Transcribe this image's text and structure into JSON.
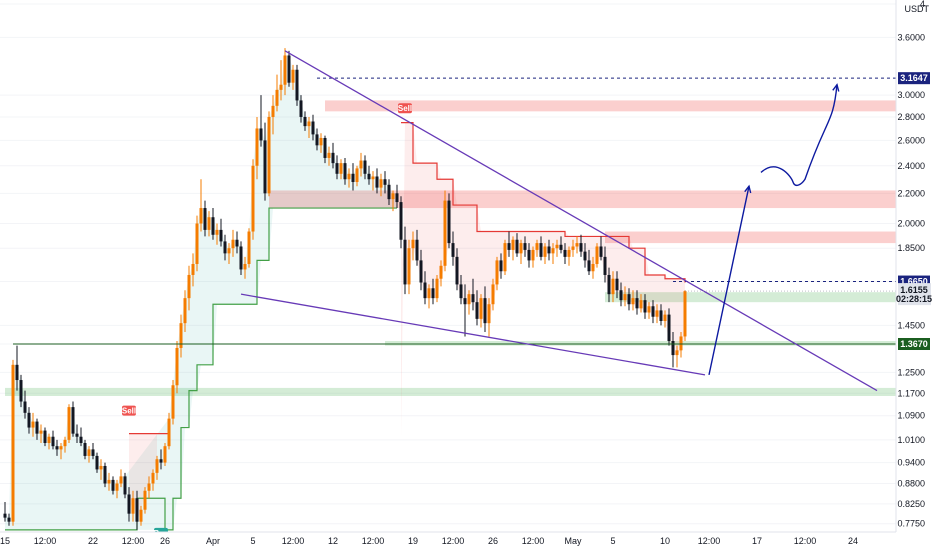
{
  "chart_data": {
    "type": "candlestick",
    "currency": "USDT",
    "y_scale": "log",
    "ylim": [
      0.755,
      4.0
    ],
    "y_ticks": [
      "4",
      "3.6000",
      "3.0000",
      "2.8000",
      "2.6000",
      "2.4000",
      "2.2000",
      "2.0000",
      "1.8500",
      "1.6650",
      "1.4500",
      "1.3670",
      "1.2500",
      "1.1700",
      "1.0900",
      "1.0100",
      "0.9400",
      "0.8800",
      "0.8250",
      "0.7750"
    ],
    "y_tick_values": [
      4.0,
      3.6,
      3.0,
      2.8,
      2.6,
      2.4,
      2.2,
      2.0,
      1.85,
      1.665,
      1.45,
      1.367,
      1.25,
      1.17,
      1.09,
      1.01,
      0.94,
      0.88,
      0.825,
      0.775
    ],
    "x_ticks": [
      "15",
      "12:00",
      "22",
      "12:00",
      "26",
      "Apr",
      "5",
      "12:00",
      "12",
      "12:00",
      "19",
      "12:00",
      "26",
      "12:00",
      "May",
      "5",
      "10",
      "12:00",
      "17",
      "12:00",
      "24"
    ],
    "x_tick_index": [
      0,
      10,
      22,
      32,
      40,
      52,
      62,
      72,
      82,
      92,
      102,
      112,
      122,
      132,
      142,
      152,
      165,
      176,
      188,
      200,
      212
    ],
    "x_range": [
      0,
      222
    ],
    "ohlc": [
      [
        0.8,
        0.83,
        0.78,
        0.79
      ],
      [
        0.79,
        0.8,
        0.77,
        0.78
      ],
      [
        0.78,
        1.3,
        0.77,
        1.28
      ],
      [
        1.28,
        1.36,
        1.18,
        1.22
      ],
      [
        1.22,
        1.24,
        1.12,
        1.14
      ],
      [
        1.14,
        1.18,
        1.08,
        1.1
      ],
      [
        1.1,
        1.12,
        1.03,
        1.05
      ],
      [
        1.05,
        1.1,
        1.02,
        1.07
      ],
      [
        1.07,
        1.08,
        1.01,
        1.03
      ],
      [
        1.03,
        1.06,
        1.0,
        1.04
      ],
      [
        1.04,
        1.05,
        0.99,
        1.0
      ],
      [
        1.0,
        1.03,
        0.98,
        1.02
      ],
      [
        1.02,
        1.04,
        0.98,
        0.99
      ],
      [
        0.99,
        1.01,
        0.96,
        0.98
      ],
      [
        0.98,
        1.0,
        0.95,
        0.99
      ],
      [
        0.99,
        1.02,
        0.97,
        1.01
      ],
      [
        1.01,
        1.13,
        1.0,
        1.12
      ],
      [
        1.12,
        1.14,
        1.02,
        1.03
      ],
      [
        1.03,
        1.06,
        1.0,
        1.02
      ],
      [
        1.02,
        1.05,
        0.99,
        1.0
      ],
      [
        1.0,
        1.01,
        0.95,
        0.96
      ],
      [
        0.96,
        0.99,
        0.94,
        0.98
      ],
      [
        0.98,
        1.0,
        0.95,
        0.96
      ],
      [
        0.96,
        0.97,
        0.91,
        0.92
      ],
      [
        0.92,
        0.95,
        0.89,
        0.93
      ],
      [
        0.93,
        0.94,
        0.87,
        0.88
      ],
      [
        0.88,
        0.91,
        0.86,
        0.89
      ],
      [
        0.89,
        0.9,
        0.85,
        0.86
      ],
      [
        0.86,
        0.89,
        0.84,
        0.88
      ],
      [
        0.88,
        0.92,
        0.87,
        0.9
      ],
      [
        0.9,
        0.91,
        0.84,
        0.85
      ],
      [
        0.85,
        0.87,
        0.78,
        0.8
      ],
      [
        0.8,
        0.86,
        0.78,
        0.84
      ],
      [
        0.84,
        0.86,
        0.76,
        0.78
      ],
      [
        0.78,
        0.82,
        0.77,
        0.81
      ],
      [
        0.81,
        0.87,
        0.8,
        0.86
      ],
      [
        0.86,
        0.9,
        0.84,
        0.88
      ],
      [
        0.88,
        0.92,
        0.86,
        0.91
      ],
      [
        0.91,
        0.96,
        0.89,
        0.95
      ],
      [
        0.95,
        0.98,
        0.92,
        0.94
      ],
      [
        0.94,
        1.0,
        0.93,
        0.99
      ],
      [
        0.99,
        1.1,
        0.98,
        1.08
      ],
      [
        1.08,
        1.22,
        1.06,
        1.2
      ],
      [
        1.2,
        1.38,
        1.17,
        1.35
      ],
      [
        1.35,
        1.5,
        1.31,
        1.46
      ],
      [
        1.46,
        1.62,
        1.42,
        1.58
      ],
      [
        1.58,
        1.75,
        1.52,
        1.7
      ],
      [
        1.7,
        1.82,
        1.64,
        1.76
      ],
      [
        1.76,
        2.05,
        1.72,
        2.0
      ],
      [
        2.0,
        2.3,
        1.95,
        2.1
      ],
      [
        2.1,
        2.15,
        1.92,
        1.96
      ],
      [
        1.96,
        2.08,
        1.92,
        2.04
      ],
      [
        2.04,
        2.1,
        1.9,
        1.93
      ],
      [
        1.93,
        2.0,
        1.87,
        1.96
      ],
      [
        1.96,
        2.03,
        1.86,
        1.89
      ],
      [
        1.89,
        1.93,
        1.78,
        1.82
      ],
      [
        1.82,
        1.88,
        1.76,
        1.85
      ],
      [
        1.85,
        1.96,
        1.8,
        1.9
      ],
      [
        1.9,
        1.95,
        1.82,
        1.86
      ],
      [
        1.86,
        1.89,
        1.7,
        1.73
      ],
      [
        1.73,
        1.8,
        1.68,
        1.76
      ],
      [
        1.76,
        1.97,
        1.74,
        1.95
      ],
      [
        1.95,
        2.45,
        1.9,
        2.4
      ],
      [
        2.4,
        2.8,
        2.3,
        2.7
      ],
      [
        2.7,
        3.0,
        2.55,
        2.6
      ],
      [
        2.6,
        2.75,
        2.15,
        2.2
      ],
      [
        2.2,
        2.85,
        2.18,
        2.8
      ],
      [
        2.8,
        3.0,
        2.65,
        2.9
      ],
      [
        2.9,
        3.2,
        2.85,
        3.05
      ],
      [
        3.05,
        3.35,
        2.95,
        3.1
      ],
      [
        3.1,
        3.48,
        3.0,
        3.4
      ],
      [
        3.4,
        3.45,
        3.08,
        3.12
      ],
      [
        3.12,
        3.3,
        3.05,
        3.25
      ],
      [
        3.25,
        3.3,
        2.9,
        2.95
      ],
      [
        2.95,
        3.0,
        2.75,
        2.8
      ],
      [
        2.8,
        2.85,
        2.68,
        2.72
      ],
      [
        2.72,
        2.8,
        2.62,
        2.76
      ],
      [
        2.76,
        2.82,
        2.6,
        2.65
      ],
      [
        2.65,
        2.7,
        2.52,
        2.56
      ],
      [
        2.56,
        2.66,
        2.5,
        2.62
      ],
      [
        2.62,
        2.64,
        2.42,
        2.46
      ],
      [
        2.46,
        2.55,
        2.4,
        2.5
      ],
      [
        2.5,
        2.58,
        2.38,
        2.42
      ],
      [
        2.42,
        2.48,
        2.3,
        2.34
      ],
      [
        2.34,
        2.45,
        2.3,
        2.42
      ],
      [
        2.42,
        2.46,
        2.26,
        2.3
      ],
      [
        2.3,
        2.38,
        2.24,
        2.34
      ],
      [
        2.34,
        2.42,
        2.22,
        2.28
      ],
      [
        2.28,
        2.4,
        2.25,
        2.38
      ],
      [
        2.38,
        2.5,
        2.32,
        2.44
      ],
      [
        2.44,
        2.48,
        2.3,
        2.34
      ],
      [
        2.34,
        2.4,
        2.26,
        2.3
      ],
      [
        2.3,
        2.36,
        2.22,
        2.32
      ],
      [
        2.32,
        2.38,
        2.2,
        2.24
      ],
      [
        2.24,
        2.34,
        2.18,
        2.3
      ],
      [
        2.3,
        2.36,
        2.2,
        2.26
      ],
      [
        2.26,
        2.3,
        2.12,
        2.16
      ],
      [
        2.16,
        2.22,
        2.08,
        2.2
      ],
      [
        2.2,
        2.26,
        2.1,
        2.14
      ],
      [
        2.14,
        2.18,
        1.85,
        1.9
      ],
      [
        1.9,
        1.98,
        1.6,
        1.65
      ],
      [
        1.65,
        1.9,
        1.6,
        1.85
      ],
      [
        1.85,
        1.95,
        1.78,
        1.9
      ],
      [
        1.9,
        1.96,
        1.75,
        1.78
      ],
      [
        1.78,
        1.84,
        1.62,
        1.66
      ],
      [
        1.66,
        1.72,
        1.55,
        1.58
      ],
      [
        1.58,
        1.65,
        1.53,
        1.63
      ],
      [
        1.63,
        1.68,
        1.55,
        1.58
      ],
      [
        1.58,
        1.7,
        1.56,
        1.68
      ],
      [
        1.68,
        1.78,
        1.64,
        1.75
      ],
      [
        1.75,
        2.22,
        1.72,
        2.15
      ],
      [
        2.15,
        2.2,
        1.85,
        1.88
      ],
      [
        1.88,
        1.95,
        1.75,
        1.8
      ],
      [
        1.8,
        1.85,
        1.62,
        1.65
      ],
      [
        1.65,
        1.7,
        1.55,
        1.58
      ],
      [
        1.58,
        1.65,
        1.4,
        1.55
      ],
      [
        1.55,
        1.62,
        1.5,
        1.6
      ],
      [
        1.6,
        1.68,
        1.52,
        1.56
      ],
      [
        1.56,
        1.62,
        1.45,
        1.48
      ],
      [
        1.48,
        1.6,
        1.44,
        1.58
      ],
      [
        1.58,
        1.64,
        1.42,
        1.46
      ],
      [
        1.46,
        1.58,
        1.4,
        1.55
      ],
      [
        1.55,
        1.68,
        1.52,
        1.65
      ],
      [
        1.65,
        1.8,
        1.62,
        1.78
      ],
      [
        1.78,
        1.82,
        1.68,
        1.72
      ],
      [
        1.72,
        1.9,
        1.7,
        1.88
      ],
      [
        1.88,
        1.95,
        1.8,
        1.84
      ],
      [
        1.84,
        1.92,
        1.78,
        1.9
      ],
      [
        1.9,
        1.94,
        1.8,
        1.82
      ],
      [
        1.82,
        1.9,
        1.76,
        1.88
      ],
      [
        1.88,
        1.92,
        1.8,
        1.84
      ],
      [
        1.84,
        1.88,
        1.74,
        1.78
      ],
      [
        1.78,
        1.86,
        1.74,
        1.84
      ],
      [
        1.84,
        1.9,
        1.8,
        1.88
      ],
      [
        1.88,
        1.92,
        1.78,
        1.8
      ],
      [
        1.8,
        1.88,
        1.76,
        1.86
      ],
      [
        1.86,
        1.9,
        1.78,
        1.82
      ],
      [
        1.82,
        1.88,
        1.76,
        1.85
      ],
      [
        1.85,
        1.9,
        1.8,
        1.87
      ],
      [
        1.87,
        1.92,
        1.82,
        1.84
      ],
      [
        1.84,
        1.88,
        1.76,
        1.8
      ],
      [
        1.8,
        1.86,
        1.75,
        1.84
      ],
      [
        1.84,
        1.9,
        1.8,
        1.86
      ],
      [
        1.86,
        1.92,
        1.82,
        1.88
      ],
      [
        1.88,
        1.93,
        1.8,
        1.83
      ],
      [
        1.83,
        1.88,
        1.74,
        1.78
      ],
      [
        1.78,
        1.84,
        1.7,
        1.72
      ],
      [
        1.72,
        1.8,
        1.68,
        1.76
      ],
      [
        1.76,
        1.88,
        1.74,
        1.86
      ],
      [
        1.86,
        1.92,
        1.78,
        1.8
      ],
      [
        1.8,
        1.86,
        1.66,
        1.7
      ],
      [
        1.7,
        1.74,
        1.56,
        1.6
      ],
      [
        1.6,
        1.72,
        1.56,
        1.68
      ],
      [
        1.68,
        1.72,
        1.58,
        1.62
      ],
      [
        1.62,
        1.66,
        1.54,
        1.57
      ],
      [
        1.57,
        1.64,
        1.54,
        1.6
      ],
      [
        1.6,
        1.63,
        1.52,
        1.55
      ],
      [
        1.55,
        1.62,
        1.52,
        1.58
      ],
      [
        1.58,
        1.62,
        1.5,
        1.53
      ],
      [
        1.53,
        1.6,
        1.51,
        1.57
      ],
      [
        1.57,
        1.6,
        1.48,
        1.51
      ],
      [
        1.51,
        1.56,
        1.48,
        1.54
      ],
      [
        1.54,
        1.57,
        1.46,
        1.49
      ],
      [
        1.49,
        1.55,
        1.46,
        1.52
      ],
      [
        1.52,
        1.55,
        1.45,
        1.47
      ],
      [
        1.47,
        1.52,
        1.44,
        1.5
      ],
      [
        1.5,
        1.53,
        1.36,
        1.38
      ],
      [
        1.38,
        1.42,
        1.27,
        1.32
      ],
      [
        1.32,
        1.36,
        1.27,
        1.34
      ],
      [
        1.34,
        1.42,
        1.31,
        1.4
      ],
      [
        1.4,
        1.62,
        1.38,
        1.6155
      ]
    ],
    "supertrend": {
      "up": [
        [
          0,
          0.76
        ],
        [
          30,
          0.76
        ],
        [
          33,
          0.84
        ],
        [
          40,
          0.76
        ],
        [
          42,
          0.84
        ],
        [
          44,
          1.05
        ],
        [
          46,
          1.18
        ],
        [
          48,
          1.28
        ],
        [
          52,
          1.55
        ],
        [
          58,
          1.55
        ],
        [
          63,
          1.78
        ],
        [
          66,
          2.1
        ],
        [
          72,
          2.1
        ],
        [
          98,
          2.1
        ]
      ],
      "down": [
        [
          31,
          1.03
        ],
        [
          38,
          1.03
        ],
        [
          41,
          1.02
        ],
        [
          99,
          2.75
        ],
        [
          102,
          2.42
        ],
        [
          108,
          2.3
        ],
        [
          112,
          2.12
        ],
        [
          118,
          1.95
        ],
        [
          127,
          1.95
        ],
        [
          136,
          1.95
        ],
        [
          140,
          1.92
        ],
        [
          150,
          1.92
        ],
        [
          156,
          1.85
        ],
        [
          160,
          1.7
        ],
        [
          165,
          1.68
        ],
        [
          170,
          1.66
        ]
      ],
      "signals": [
        {
          "label": "Sell",
          "index": 31,
          "price": 1.07,
          "color": "#ef5350"
        },
        {
          "label": "Buy",
          "index": 39,
          "price": 0.76,
          "color": "#26a69a"
        },
        {
          "label": "Sell",
          "index": 100,
          "price": 2.78,
          "color": "#ef5350"
        }
      ]
    },
    "zones": [
      {
        "from": 2.85,
        "to": 2.95,
        "color": "#ef5350",
        "start": 80
      },
      {
        "from": 2.1,
        "to": 2.22,
        "color": "#ef5350",
        "start": 66
      },
      {
        "from": 1.88,
        "to": 1.95,
        "color": "#ef5350",
        "start": 150
      },
      {
        "from": 1.56,
        "to": 1.61,
        "color": "#66bb6a",
        "start": 150
      },
      {
        "from": 1.36,
        "to": 1.38,
        "color": "#66bb6a",
        "start": 95
      },
      {
        "from": 1.16,
        "to": 1.19,
        "color": "#66bb6a",
        "start": 0
      }
    ],
    "levels": [
      {
        "label": "3.1647",
        "value": 3.1647,
        "style": "dashed",
        "color": "#1a237e",
        "start": 78
      },
      {
        "label": "1.6650",
        "value": 1.665,
        "style": "dashed",
        "color": "#1a237e",
        "start": 167
      },
      {
        "label": "1.3670",
        "value": 1.367,
        "style": "solid",
        "color": "#1b5e20",
        "start": 2
      }
    ],
    "trendlines": [
      {
        "from": [
          70,
          3.45
        ],
        "to": [
          218,
          1.18
        ],
        "color": "#673ab7"
      },
      {
        "from": [
          59,
          1.6
        ],
        "to": [
          175,
          1.24
        ],
        "color": "#673ab7"
      }
    ],
    "projection": {
      "color": "#0d1aa0",
      "points": [
        [
          176,
          1.24
        ],
        [
          186,
          2.25
        ],
        [
          189,
          2.35
        ],
        [
          193,
          2.4
        ],
        [
          197,
          2.28
        ],
        [
          200,
          2.3
        ],
        [
          205,
          2.72
        ],
        [
          208,
          3.1
        ]
      ]
    },
    "last_price": "1.6155",
    "countdown": "02:28:15"
  }
}
